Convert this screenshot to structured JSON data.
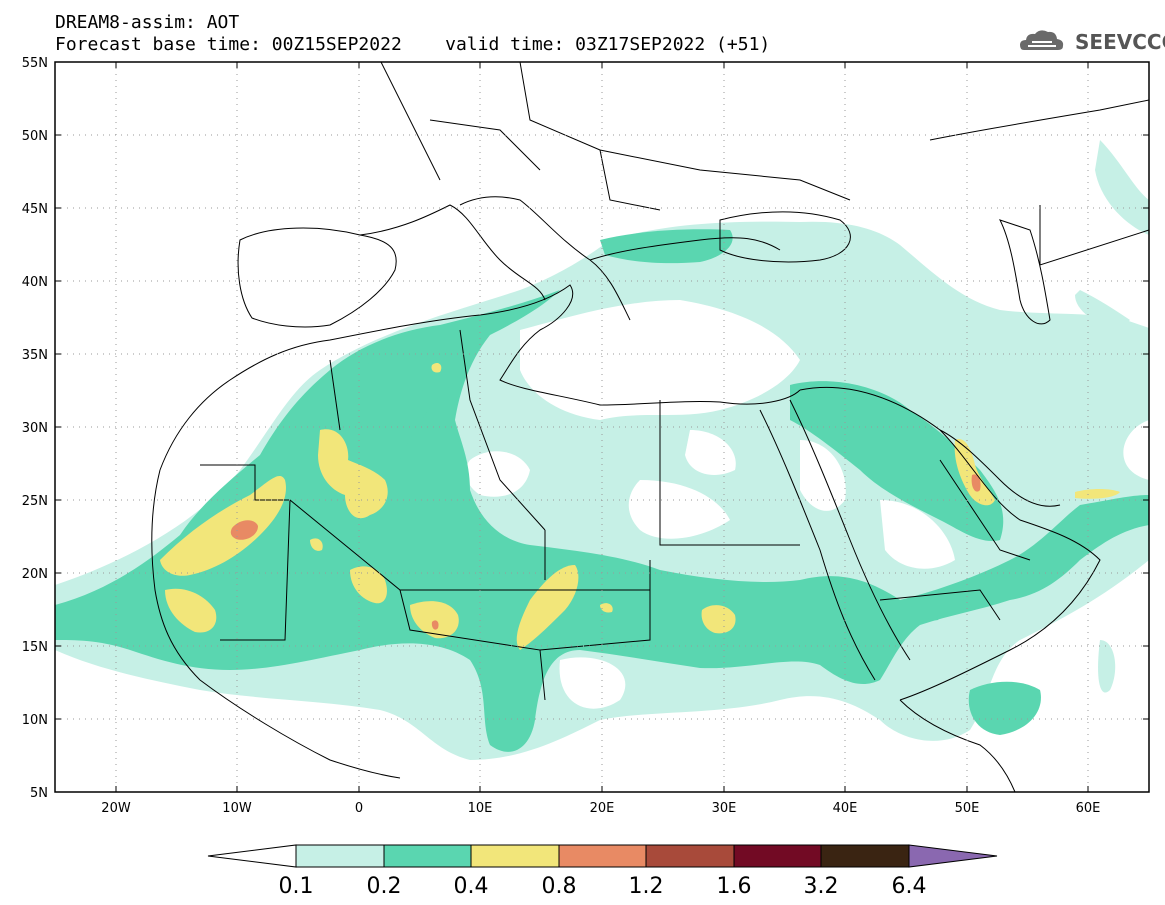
{
  "header": {
    "model_title": "DREAM8-assim: AOT",
    "forecast_line": "Forecast base time: 00Z15SEP2022    valid time: 03Z17SEP2022 (+51)",
    "logo_text": "SEEVCCC"
  },
  "map": {
    "lat_labels": [
      "55N",
      "50N",
      "45N",
      "40N",
      "35N",
      "30N",
      "25N",
      "20N",
      "15N",
      "10N",
      "5N"
    ],
    "lon_labels": [
      "20W",
      "10W",
      "0",
      "10E",
      "20E",
      "30E",
      "40E",
      "50E",
      "60E"
    ],
    "lat_range": [
      5,
      55
    ],
    "lon_range": [
      -25,
      65
    ]
  },
  "colorbar": {
    "labels": [
      "0.1",
      "0.2",
      "0.4",
      "0.8",
      "1.2",
      "1.6",
      "3.2",
      "6.4"
    ],
    "colors": [
      "#c6f0e6",
      "#5ad6b0",
      "#f2e67a",
      "#e88a64",
      "#a84a3a",
      "#720a24",
      "#3a2412",
      "#8a68b0"
    ]
  },
  "colors": {
    "class_0_1": "#c6f0e6",
    "class_0_2": "#5ad6b0",
    "class_0_4": "#f2e67a",
    "class_0_8": "#e88a64"
  }
}
